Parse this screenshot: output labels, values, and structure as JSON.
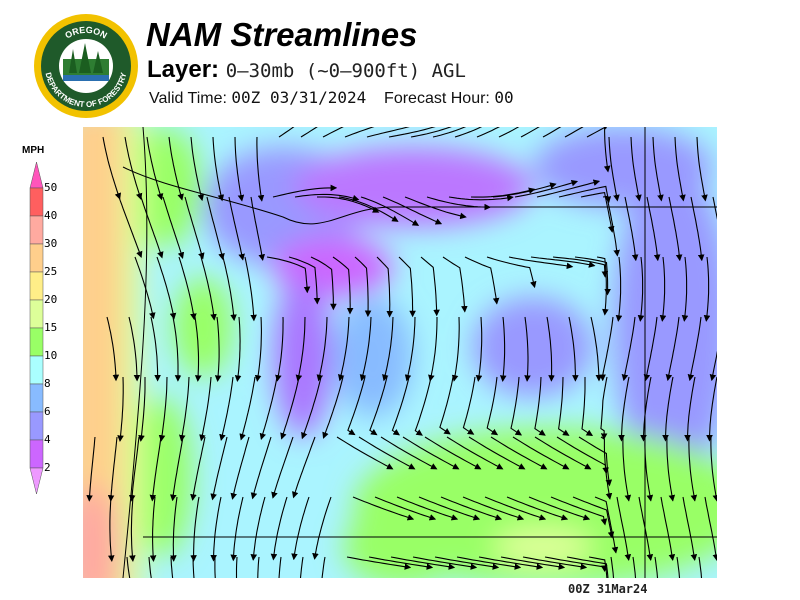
{
  "logo": {
    "top_text": "OREGON",
    "bottom_text": "DEPARTMENT OF FORESTRY"
  },
  "header": {
    "title": "NAM Streamlines",
    "layer_label": "Layer:",
    "layer_value": "0–30mb (~0–900ft) AGL",
    "valid_label": "Valid Time:",
    "valid_value": "00Z 03/31/2024",
    "forecast_label": "Forecast Hour:",
    "forecast_value": "00"
  },
  "legend": {
    "units": "MPH",
    "ticks": [
      "50",
      "40",
      "30",
      "25",
      "20",
      "15",
      "10",
      "8",
      "6",
      "4",
      "2"
    ],
    "colors": [
      "#ff5f5f",
      "#ffaaa0",
      "#ffcf8c",
      "#ffee88",
      "#ddff99",
      "#99ff66",
      "#aaffff",
      "#88bbff",
      "#9999ff",
      "#cc66ff"
    ],
    "over_color": "#ff55bb",
    "under_color": "#ee99ff"
  },
  "footer": {
    "timestamp": "00Z 31Mar24"
  }
}
